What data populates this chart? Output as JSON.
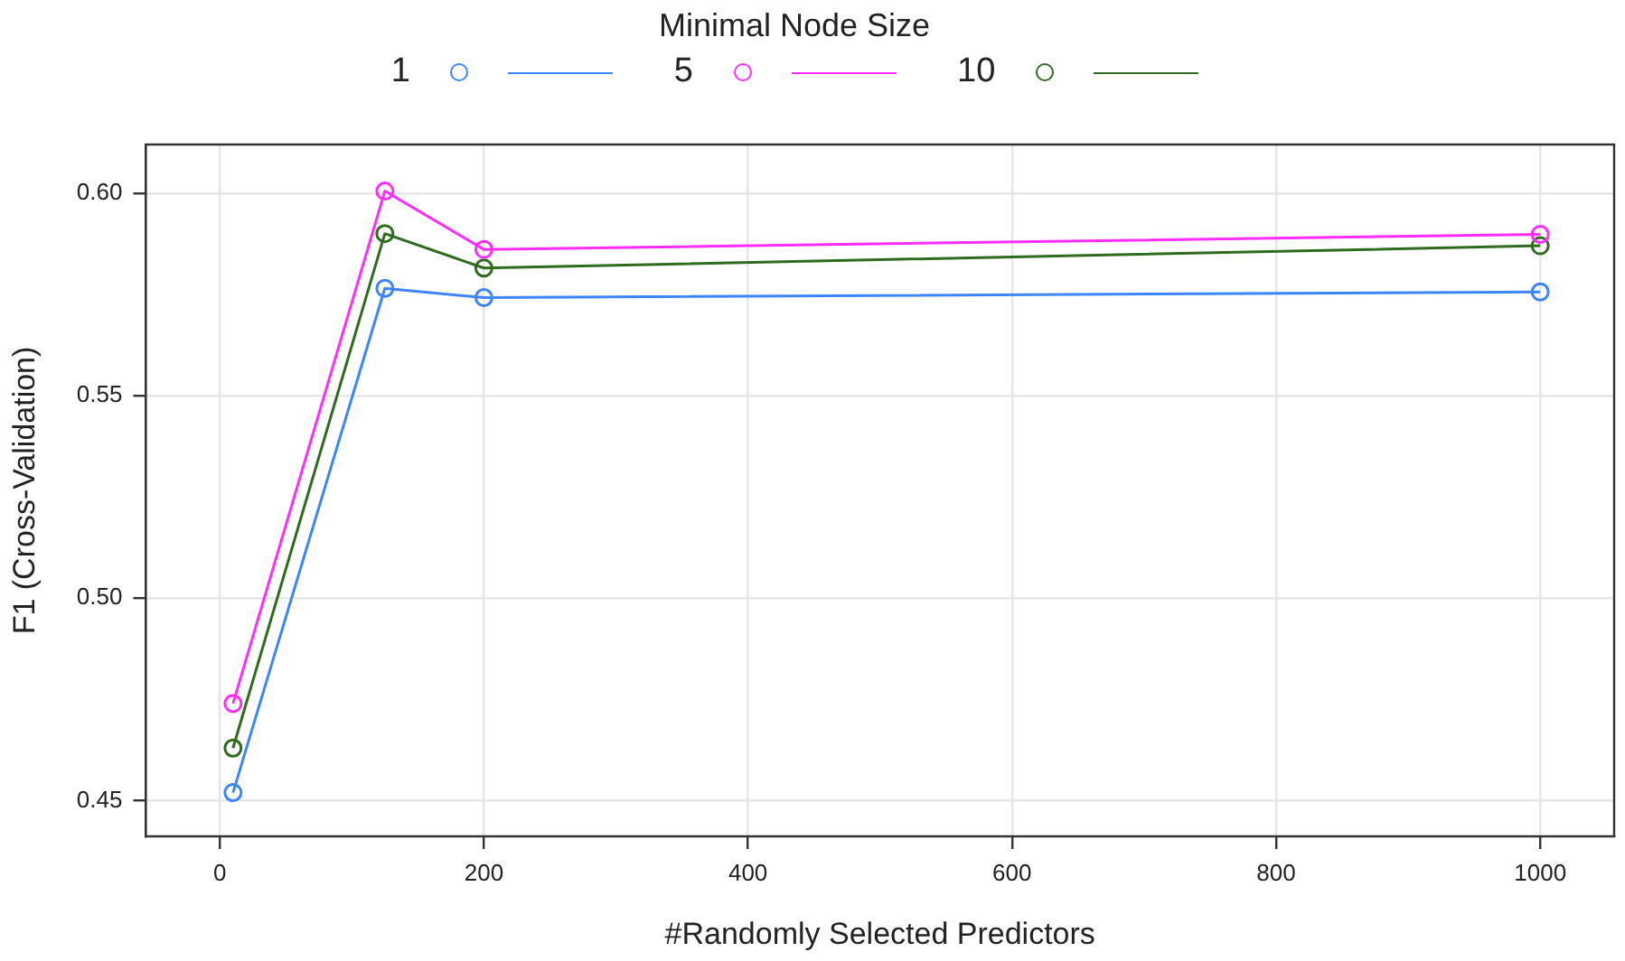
{
  "chart_data": {
    "type": "line",
    "xlabel": "#Randomly Selected Predictors",
    "ylabel": "F1 (Cross-Validation)",
    "legend_title": "Minimal Node Size",
    "legend": "top",
    "grid": true,
    "marker": "circle",
    "line_style": "solid",
    "x": [
      10,
      125,
      200,
      1000
    ],
    "series": [
      {
        "name": "1",
        "color": "#3d85ff",
        "values": [
          0.452,
          0.5765,
          0.5742,
          0.5756
        ]
      },
      {
        "name": "5",
        "color": "#ff2cff",
        "values": [
          0.474,
          0.6005,
          0.5861,
          0.5898
        ]
      },
      {
        "name": "10",
        "color": "#2f6b1f",
        "values": [
          0.463,
          0.59,
          0.5815,
          0.587
        ]
      }
    ],
    "xlim": [
      -56,
      1056
    ],
    "xticks": [
      0,
      200,
      400,
      600,
      800,
      1000
    ],
    "ylim": [
      0.4412,
      0.612
    ],
    "yticks": [
      {
        "value": 0.45,
        "label": "0.45"
      },
      {
        "value": 0.5,
        "label": "0.50"
      },
      {
        "value": 0.55,
        "label": "0.55"
      },
      {
        "value": 0.6,
        "label": "0.60"
      }
    ]
  }
}
